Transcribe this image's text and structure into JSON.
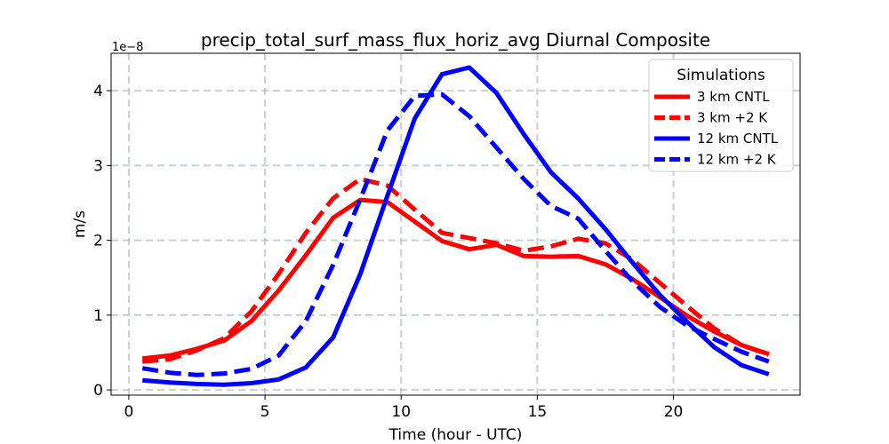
{
  "chart_data": {
    "type": "line",
    "title": "precip_total_surf_mass_flux_horiz_avg Diurnal Composite",
    "xlabel": "Time (hour - UTC)",
    "ylabel": "m/s",
    "offset_label": "1e−8",
    "xlim": [
      -0.65,
      24.65
    ],
    "ylim": [
      -0.07,
      4.5
    ],
    "x_ticks": [
      0,
      5,
      10,
      15,
      20
    ],
    "y_ticks": [
      0,
      1,
      2,
      3,
      4
    ],
    "grid": true,
    "legend": {
      "title": "Simulations",
      "position": "top-right"
    },
    "x": [
      0.5,
      1.5,
      2.5,
      3.5,
      4.5,
      5.5,
      6.5,
      7.5,
      8.5,
      9.5,
      10.5,
      11.5,
      12.5,
      13.5,
      14.5,
      15.5,
      16.5,
      17.5,
      18.5,
      19.5,
      20.5,
      21.5,
      22.5,
      23.5
    ],
    "series": [
      {
        "name": "3 km CNTL",
        "color": "#ff0000",
        "dash": "solid",
        "values": [
          0.42,
          0.46,
          0.55,
          0.66,
          0.92,
          1.33,
          1.8,
          2.3,
          2.54,
          2.51,
          2.25,
          1.99,
          1.88,
          1.94,
          1.79,
          1.78,
          1.79,
          1.68,
          1.48,
          1.24,
          0.99,
          0.78,
          0.6,
          0.48
        ]
      },
      {
        "name": "3 km +2 K",
        "color": "#ff0000",
        "dash": "dashed",
        "values": [
          0.38,
          0.41,
          0.53,
          0.69,
          1.05,
          1.55,
          2.1,
          2.56,
          2.82,
          2.73,
          2.41,
          2.1,
          2.03,
          1.96,
          1.86,
          1.92,
          2.02,
          1.96,
          1.74,
          1.43,
          1.12,
          0.82,
          0.6,
          0.47
        ]
      },
      {
        "name": "12 km CNTL",
        "color": "#0000ff",
        "dash": "solid",
        "values": [
          0.13,
          0.1,
          0.08,
          0.07,
          0.09,
          0.14,
          0.3,
          0.7,
          1.55,
          2.6,
          3.63,
          4.22,
          4.31,
          3.97,
          3.42,
          2.91,
          2.56,
          2.15,
          1.7,
          1.27,
          0.91,
          0.57,
          0.33,
          0.21
        ]
      },
      {
        "name": "12 km +2 K",
        "color": "#0000ff",
        "dash": "dashed",
        "values": [
          0.29,
          0.23,
          0.2,
          0.22,
          0.28,
          0.46,
          0.92,
          1.67,
          2.55,
          3.47,
          3.93,
          3.95,
          3.66,
          3.24,
          2.82,
          2.46,
          2.29,
          1.86,
          1.45,
          1.11,
          0.86,
          0.68,
          0.51,
          0.38
        ]
      }
    ]
  }
}
